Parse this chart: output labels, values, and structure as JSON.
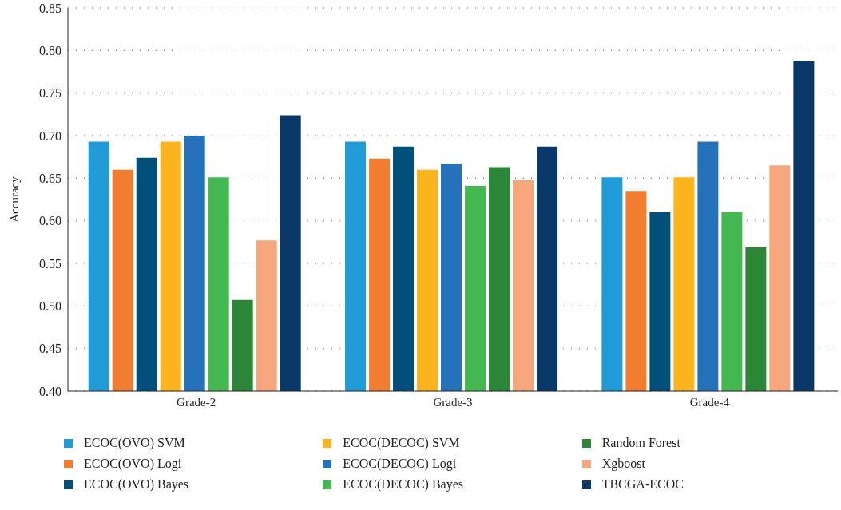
{
  "chart_data": {
    "type": "bar",
    "ylabel": "Accuracy",
    "categories": [
      "Grade-2",
      "Grade-3",
      "Grade-4"
    ],
    "ylim": [
      0.4,
      0.85
    ],
    "yticks": [
      {
        "value": 0.4,
        "label": "0.40"
      },
      0.45,
      {
        "value": 0.5,
        "label": "0.50"
      },
      0.55,
      {
        "value": 0.6,
        "label": "0.60"
      },
      0.65,
      {
        "value": 0.7,
        "label": "0.70"
      },
      0.75,
      {
        "value": 0.8,
        "label": "0.80"
      },
      0.85
    ],
    "grid": "y",
    "legend": "bottom",
    "series": [
      {
        "name": "ECOC(OVO) SVM",
        "color": "#219bd7",
        "values": [
          0.693,
          0.693,
          0.651
        ]
      },
      {
        "name": "ECOC(OVO) Logi",
        "color": "#f27d30",
        "values": [
          0.66,
          0.673,
          0.635
        ]
      },
      {
        "name": "ECOC(OVO) Bayes",
        "color": "#034f7b",
        "values": [
          0.674,
          0.687,
          0.61
        ]
      },
      {
        "name": "ECOC(DECOC) SVM",
        "color": "#fbb41e",
        "values": [
          0.693,
          0.66,
          0.651
        ]
      },
      {
        "name": "ECOC(DECOC) Logi",
        "color": "#2572ba",
        "values": [
          0.7,
          0.667,
          0.693
        ]
      },
      {
        "name": "ECOC(DECOC) Bayes",
        "color": "#45b751",
        "values": [
          0.651,
          0.641,
          0.61
        ]
      },
      {
        "name": "Random Forest",
        "color": "#2c8638",
        "values": [
          0.507,
          0.663,
          0.569
        ]
      },
      {
        "name": "Xgboost",
        "color": "#f6a67c",
        "values": [
          0.577,
          0.648,
          0.665
        ]
      },
      {
        "name": "TBCGA-ECOC",
        "color": "#0a3868",
        "values": [
          0.724,
          0.687,
          0.788
        ]
      }
    ]
  }
}
